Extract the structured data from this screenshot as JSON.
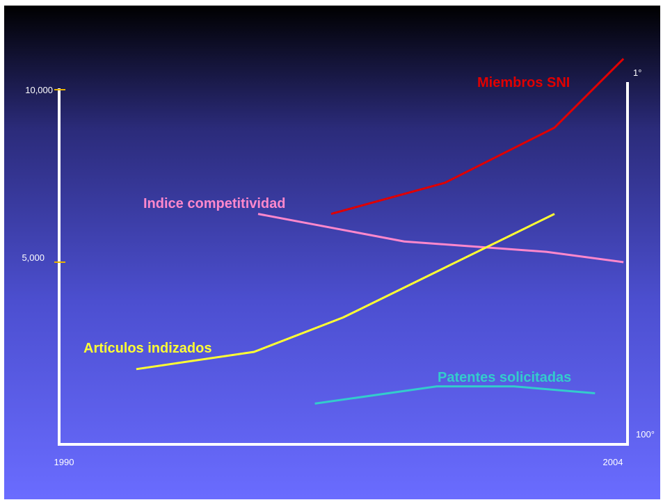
{
  "chart_data": {
    "type": "line",
    "x_start_label": "1990",
    "x_end_label": "2004",
    "xlim": [
      1990,
      2004
    ],
    "left_axis": {
      "ylim": [
        0,
        10000
      ],
      "ticks": [
        {
          "value": 5000,
          "label": "5,000"
        },
        {
          "value": 10000,
          "label": "10,000"
        }
      ],
      "tick_color": "#e8b400"
    },
    "right_axis": {
      "reversed": true,
      "top_label": "1°",
      "bottom_label": "100°"
    },
    "grid": false,
    "series": [
      {
        "name": "Miembros SNI",
        "color": "#e00000",
        "axis": "left",
        "x": [
          1996.7,
          1999.5,
          2002.2,
          2003.9
        ],
        "y": [
          6400,
          7300,
          8900,
          10900
        ]
      },
      {
        "name": "Indice competitividad",
        "color": "#ff88cc",
        "axis": "left",
        "x": [
          1994.9,
          1998.5,
          2002.0,
          2003.9
        ],
        "y": [
          6400,
          5600,
          5300,
          5000
        ]
      },
      {
        "name": "Artículos indizados",
        "color": "#ffff33",
        "axis": "left",
        "x": [
          1991.9,
          1994.8,
          1997.0,
          2002.2
        ],
        "y": [
          1900,
          2400,
          3400,
          6400
        ]
      },
      {
        "name": "Patentes solicitadas",
        "color": "#33cccc",
        "axis": "left",
        "x": [
          1996.3,
          1999.3,
          2001.2,
          2003.2
        ],
        "y": [
          900,
          1400,
          1400,
          1200
        ]
      }
    ]
  }
}
